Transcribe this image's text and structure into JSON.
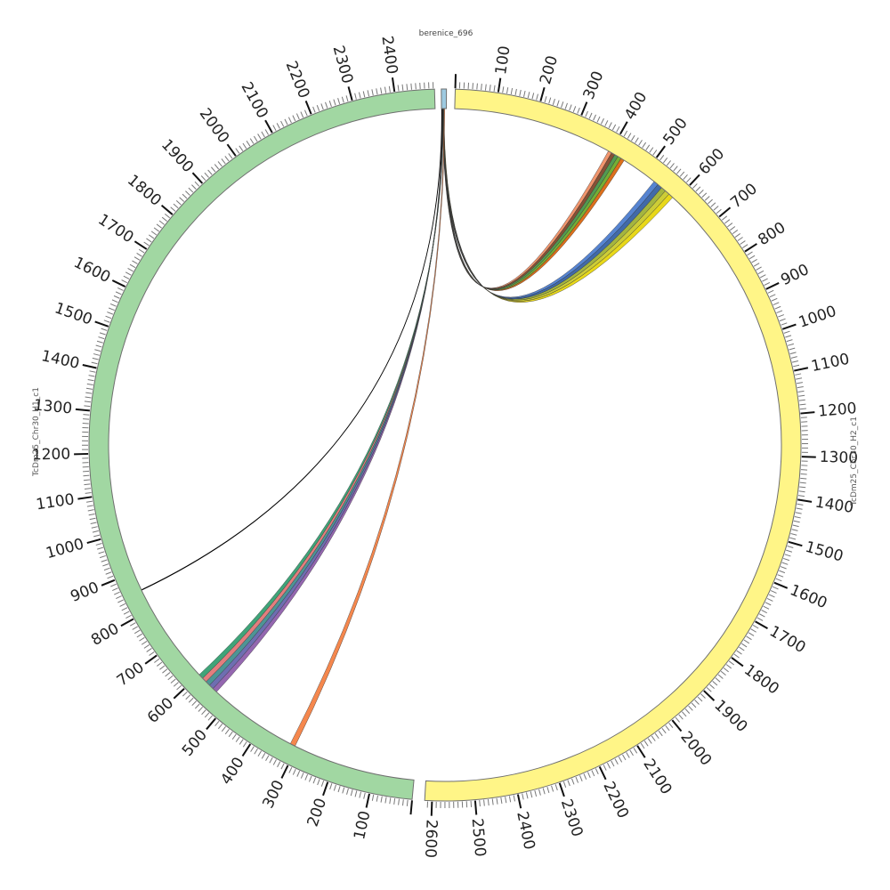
{
  "title": "berenice_696",
  "chart_data": {
    "type": "circos",
    "unit_tick_minor": 10,
    "unit_tick_major": 100,
    "segments": [
      {
        "id": "berenice",
        "name": "berenice_696",
        "length": 12,
        "color": "#9ecae1",
        "start_deg": -0.6,
        "show_ticks": false
      },
      {
        "id": "h2",
        "name": "TcDm25_Chr30_H2_c1",
        "length": 2617,
        "color": "#fff587",
        "start_deg": 1.65,
        "show_ticks": true,
        "label_flip": false
      },
      {
        "id": "h1",
        "name": "TcDm25_Chr30_H1_c1",
        "length": 2493,
        "color": "#a1d7a2",
        "start_deg": 185.3,
        "show_ticks": true,
        "label_flip": true
      }
    ],
    "deg_per_unit": 0.0694,
    "links": [
      {
        "from": "berenice",
        "from_range": [
          2,
          6
        ],
        "to": "h2",
        "to_range": [
          395,
          440
        ],
        "colors": [
          "#f08a5d",
          "#7a3d1f",
          "#3f8f3f",
          "#66a61e",
          "#d95f02"
        ]
      },
      {
        "from": "berenice",
        "from_range": [
          2,
          6
        ],
        "to": "h2",
        "to_range": [
          530,
          590
        ],
        "colors": [
          "#4477cc",
          "#2c5aa0",
          "#9aad2a",
          "#c8c820",
          "#e6d400"
        ]
      },
      {
        "from": "berenice",
        "from_range": [
          1,
          5
        ],
        "to": "h1",
        "to_range": [
          540,
          600
        ],
        "colors": [
          "#8856a7",
          "#5e5ea8",
          "#3a8a8a",
          "#e07070",
          "#2a9a6a"
        ]
      },
      {
        "from": "berenice",
        "from_range": [
          6,
          8
        ],
        "to": "h1",
        "to_range": [
          305,
          318
        ],
        "colors": [
          "#f47a3a"
        ]
      },
      {
        "from": "berenice",
        "from_range": [
          0.5,
          0.8
        ],
        "to": "h1",
        "to_range": [
          852,
          853
        ],
        "colors": [
          "#000000"
        ]
      }
    ]
  }
}
